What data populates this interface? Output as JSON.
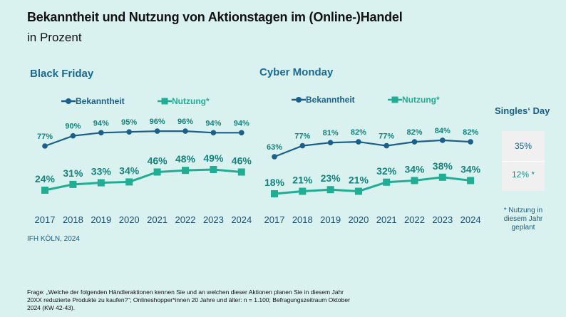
{
  "title": "Bekanntheit und Nutzung von Aktionstagen im (Online-)Handel",
  "subtitle": "in Prozent",
  "colors": {
    "bekanntheit": "#1b5f8c",
    "nutzung": "#1fae94",
    "bekanntheit_label": "#15837d",
    "nutzung_label": "#15837d",
    "background": "#d9f1ef"
  },
  "chart_data": [
    {
      "type": "line",
      "title": "Black Friday",
      "categories": [
        "2017",
        "2018",
        "2019",
        "2020",
        "2021",
        "2022",
        "2023",
        "2024"
      ],
      "series": [
        {
          "name": "Bekanntheit",
          "marker": "circle",
          "values": [
            77,
            90,
            94,
            95,
            96,
            96,
            94,
            94
          ]
        },
        {
          "name": "Nutzung*",
          "marker": "square",
          "values": [
            24,
            31,
            33,
            34,
            46,
            48,
            49,
            46
          ]
        }
      ],
      "xlabel": "",
      "ylabel": "",
      "grid": false,
      "legend": "top"
    },
    {
      "type": "line",
      "title": "Cyber Monday",
      "categories": [
        "2017",
        "2018",
        "2019",
        "2020",
        "2021",
        "2022",
        "2023",
        "2024"
      ],
      "series": [
        {
          "name": "Bekanntheit",
          "marker": "circle",
          "values": [
            63,
            77,
            81,
            82,
            77,
            82,
            84,
            82
          ]
        },
        {
          "name": "Nutzung*",
          "marker": "square",
          "values": [
            18,
            21,
            23,
            21,
            32,
            34,
            38,
            34
          ]
        }
      ],
      "xlabel": "",
      "ylabel": "",
      "grid": false,
      "legend": "top"
    }
  ],
  "singles_day": {
    "title": "Singles‘ Day",
    "bekanntheit": "35%",
    "nutzung": "12% *",
    "note": "* Nutzung in diesem Jahr geplant"
  },
  "source": "IFH KÖLN, 2024",
  "footnote": "Frage: „Welche der folgenden Händleraktionen kennen Sie und an welchen dieser Aktionen planen Sie in diesem Jahr 20XX reduzierte Produkte zu kaufen?“; Onlineshopper*innen 20 Jahre und älter: n = 1.100; Befragungszeitraum Oktober 2024 (KW 42-43)."
}
